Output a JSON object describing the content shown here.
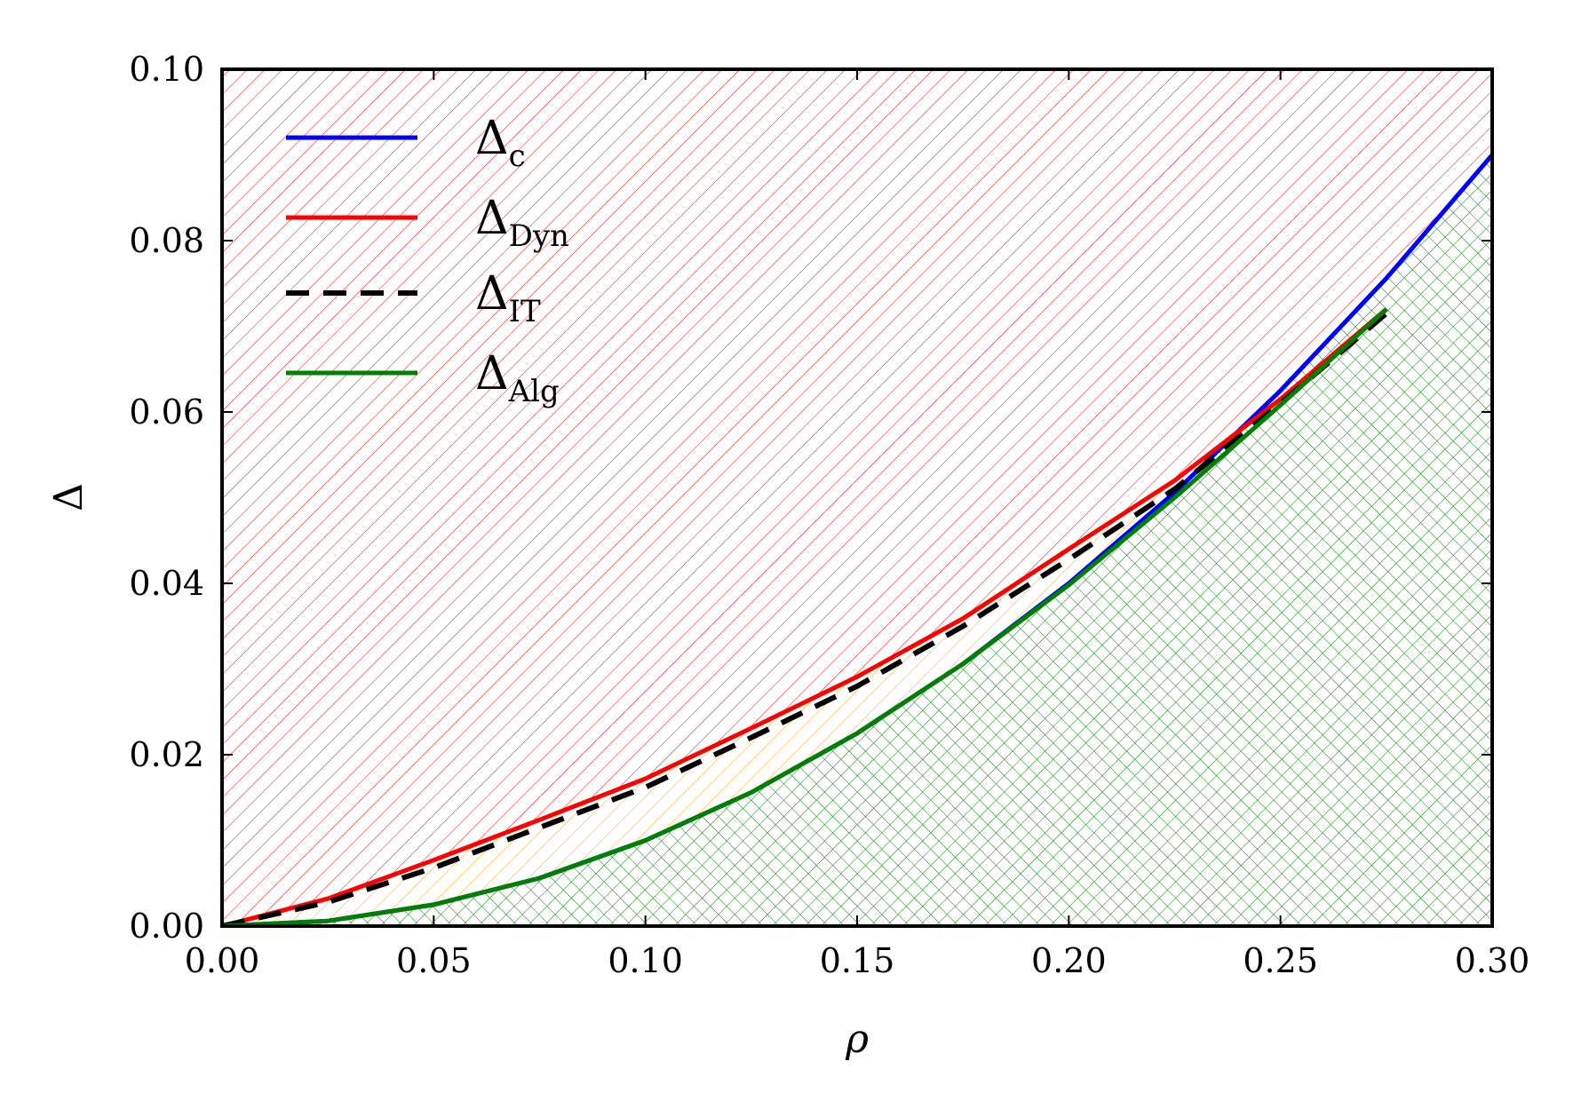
{
  "chart_data": {
    "type": "line",
    "title": "",
    "xlabel": "ρ",
    "ylabel": "Δ",
    "xlim": [
      0.0,
      0.3
    ],
    "ylim": [
      0.0,
      0.1
    ],
    "grid": false,
    "legend_placement": "top-left",
    "xticks": [
      "0.00",
      "0.05",
      "0.10",
      "0.15",
      "0.20",
      "0.25",
      "0.30"
    ],
    "yticks": [
      "0.00",
      "0.02",
      "0.04",
      "0.06",
      "0.08",
      "0.10"
    ],
    "x": [
      0.0,
      0.025,
      0.05,
      0.075,
      0.1,
      0.125,
      0.15,
      0.175,
      0.2,
      0.225,
      0.25,
      0.275,
      0.3
    ],
    "series": [
      {
        "name": "Δc",
        "base": "Δ",
        "sub": "c",
        "color": "#0000ff",
        "style": "solid",
        "values": [
          0.0,
          0.0006,
          0.0025,
          0.0056,
          0.01,
          0.0156,
          0.0225,
          0.0306,
          0.04,
          0.0506,
          0.0625,
          0.0756,
          0.09
        ]
      },
      {
        "name": "ΔDyn",
        "base": "Δ",
        "sub": "Dyn",
        "color": "#ff0000",
        "style": "solid",
        "values": [
          0.0,
          0.0032,
          0.0077,
          0.0124,
          0.0172,
          0.0231,
          0.0291,
          0.0359,
          0.044,
          0.052,
          0.0615,
          0.072,
          null
        ]
      },
      {
        "name": "ΔIT",
        "base": "Δ",
        "sub": "IT",
        "color": "#000000",
        "style": "dashed",
        "values": [
          0.0,
          0.0028,
          0.0068,
          0.0115,
          0.0162,
          0.022,
          0.028,
          0.035,
          0.0428,
          0.051,
          0.061,
          0.0715,
          null
        ]
      },
      {
        "name": "ΔAlg",
        "base": "Δ",
        "sub": "Alg",
        "color": "#008000",
        "style": "solid",
        "values": [
          0.0,
          0.0006,
          0.0025,
          0.0056,
          0.01,
          0.0156,
          0.0225,
          0.0306,
          0.0398,
          0.05,
          0.0608,
          0.072,
          null
        ]
      }
    ],
    "regions": [
      {
        "name": "above ΔDyn",
        "pattern": "diagonal hatch",
        "color": "#ff0000"
      },
      {
        "name": "between ΔDyn and ΔAlg",
        "pattern": "diagonal hatch",
        "color": "#ffa500"
      },
      {
        "name": "below ΔAlg",
        "pattern": "cross hatch",
        "color": "#008000"
      }
    ]
  }
}
